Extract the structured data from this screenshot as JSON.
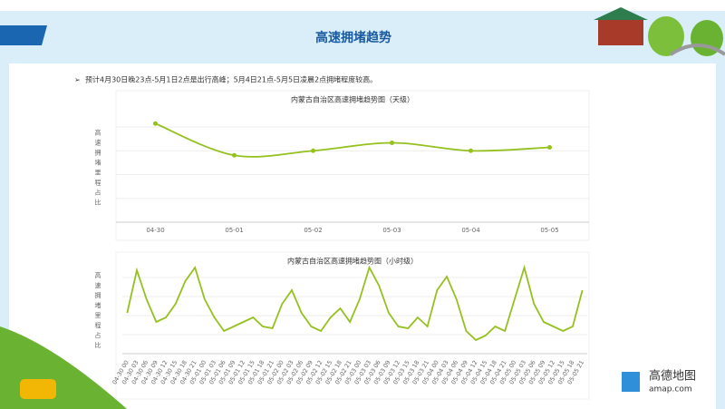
{
  "header": {
    "title": "高速拥堵趋势"
  },
  "note": "预计4月30日晚23点-5月1日2点是出行高峰；5月4日21点-5月5日凌晨2点拥堵程度较高。",
  "logo": {
    "name": "高德地图",
    "url": "amap.com"
  },
  "chart_data": [
    {
      "type": "line",
      "title": "内蒙古自治区高速拥堵趋势图（天级）",
      "y_label": "高速拥堵里程占比",
      "categories": [
        "04-30",
        "05-01",
        "05-02",
        "05-03",
        "05-04",
        "05-05"
      ],
      "values": [
        87,
        59,
        63,
        70,
        63,
        66
      ],
      "color": "#95c11f",
      "ylim": [
        0,
        100
      ],
      "smooth": true,
      "markers": true,
      "grid": true
    },
    {
      "type": "line",
      "title": "内蒙古自治区高速拥堵趋势图（小时级）",
      "y_label": "高速拥堵里程占比",
      "categories": [
        "04-30 00",
        "04-30 03",
        "04-30 06",
        "04-30 09",
        "04-30 12",
        "04-30 15",
        "04-30 18",
        "04-30 21",
        "05-01 00",
        "05-01 03",
        "05-01 06",
        "05-01 09",
        "05-01 12",
        "05-01 15",
        "05-01 18",
        "05-01 21",
        "05-02 00",
        "05-02 03",
        "05-02 06",
        "05-02 09",
        "05-02 12",
        "05-02 15",
        "05-02 18",
        "05-02 21",
        "05-03 00",
        "05-03 03",
        "05-03 06",
        "05-03 09",
        "05-03 12",
        "05-03 15",
        "05-03 18",
        "05-03 21",
        "05-04 00",
        "05-04 03",
        "05-04 06",
        "05-04 09",
        "05-04 12",
        "05-04 15",
        "05-04 18",
        "05-04 21",
        "05-05 00",
        "05-05 03",
        "05-05 06",
        "05-05 09",
        "05-05 12",
        "05-05 15",
        "05-05 18",
        "05-05 21"
      ],
      "values": [
        45,
        92,
        60,
        35,
        40,
        55,
        80,
        95,
        60,
        40,
        25,
        30,
        35,
        40,
        30,
        28,
        55,
        70,
        45,
        30,
        25,
        40,
        50,
        35,
        60,
        95,
        75,
        45,
        30,
        28,
        40,
        30,
        70,
        85,
        60,
        25,
        15,
        20,
        30,
        25,
        60,
        95,
        55,
        35,
        30,
        25,
        30,
        70
      ],
      "color": "#95c11f",
      "ylim": [
        0,
        100
      ],
      "smooth": false,
      "markers": false,
      "grid": true
    }
  ]
}
